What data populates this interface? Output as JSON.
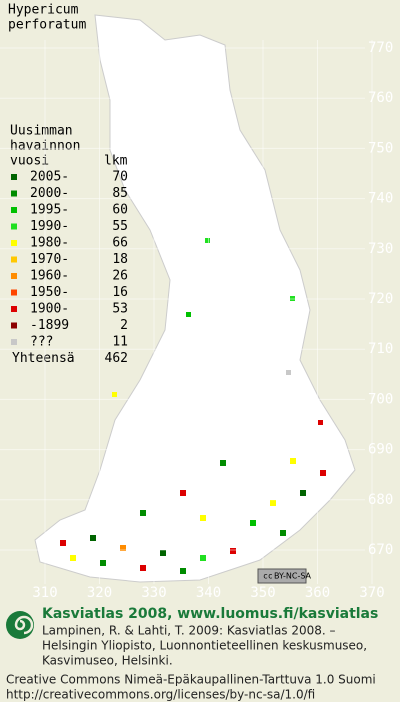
{
  "title": [
    "Hypericum",
    "perforatum"
  ],
  "legend": {
    "header": [
      "Uusimman",
      "havainnon",
      "vuosi"
    ],
    "count_header": "lkm",
    "items": [
      {
        "label": "2005-",
        "count": 70,
        "color": "#006400"
      },
      {
        "label": "2000-",
        "count": 85,
        "color": "#008c00"
      },
      {
        "label": "1995-",
        "count": 60,
        "color": "#00c000"
      },
      {
        "label": "1990-",
        "count": 55,
        "color": "#20e020"
      },
      {
        "label": "1980-",
        "count": 66,
        "color": "#ffff00"
      },
      {
        "label": "1970-",
        "count": 18,
        "color": "#ffc800"
      },
      {
        "label": "1960-",
        "count": 26,
        "color": "#ff8c00"
      },
      {
        "label": "1950-",
        "count": 16,
        "color": "#ff4600"
      },
      {
        "label": "1900-",
        "count": 53,
        "color": "#dc0000"
      },
      {
        "label": "-1899",
        "count": 2,
        "color": "#8c0000"
      },
      {
        "label": "???",
        "count": 11,
        "color": "#c8c8c8"
      }
    ],
    "total_label": "Yhteensä",
    "total": 462
  },
  "northing_ticks": [
    770,
    760,
    750,
    740,
    730,
    720,
    710,
    700,
    690,
    680,
    670
  ],
  "easting_ticks": [
    310,
    320,
    330,
    340,
    350,
    360,
    370
  ],
  "badge": {
    "cc": "cc",
    "text": "BY-NC-SA"
  },
  "footer": {
    "heading": "Kasviatlas 2008, www.luomus.fi/kasviatlas",
    "citation": [
      "Lampinen, R. & Lahti, T. 2009: Kasviatlas 2008. –",
      "Helsingin Yliopisto, Luonnontieteellinen keskusmuseo,",
      "Kasvimuseo, Helsinki."
    ],
    "license": [
      "Creative Commons Nimeä-Epäkaupallinen-Tarttuva 1.0 Suomi",
      "http://creativecommons.org/licenses/by-nc-sa/1.0/fi"
    ]
  }
}
